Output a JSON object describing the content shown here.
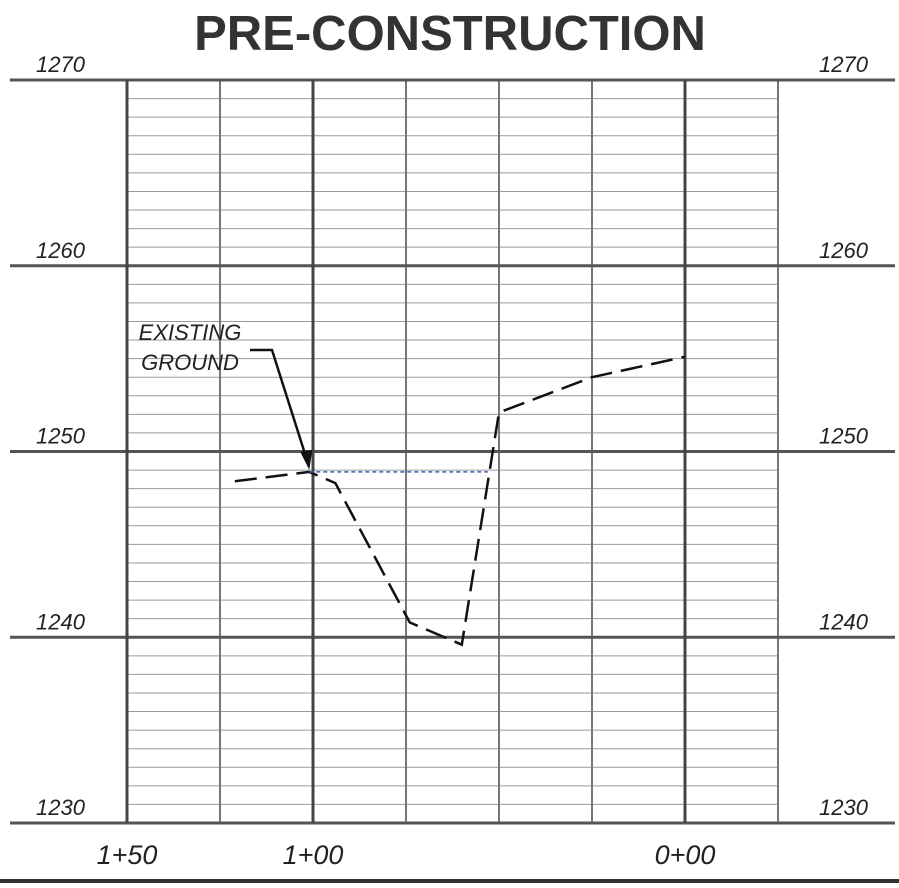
{
  "chart_data": {
    "type": "line",
    "title": "PRE-CONSTRUCTION",
    "annotation": [
      "EXISTING",
      "GROUND"
    ],
    "xlim": [
      150,
      -25
    ],
    "xticks": [
      {
        "value": 150,
        "label": "1+50"
      },
      {
        "value": 100,
        "label": "1+00"
      },
      {
        "value": 0,
        "label": "0+00"
      }
    ],
    "ylim": [
      1230,
      1270
    ],
    "yticks": [
      1230,
      1240,
      1250,
      1260,
      1270
    ],
    "grid": {
      "x_step": 25,
      "y_step": 1
    },
    "series": [
      {
        "color": "#111111",
        "dashed": true,
        "x": [
          121,
          101,
          94,
          74,
          60,
          50,
          25,
          0
        ],
        "values": [
          1248.4,
          1248.9,
          1248.3,
          1240.8,
          1239.6,
          1252.1,
          1254.0,
          1255.1
        ]
      },
      {
        "color": "#3a5fb0",
        "dashed": true,
        "x": [
          101,
          53
        ],
        "values": [
          1248.9,
          1248.9
        ]
      }
    ]
  }
}
